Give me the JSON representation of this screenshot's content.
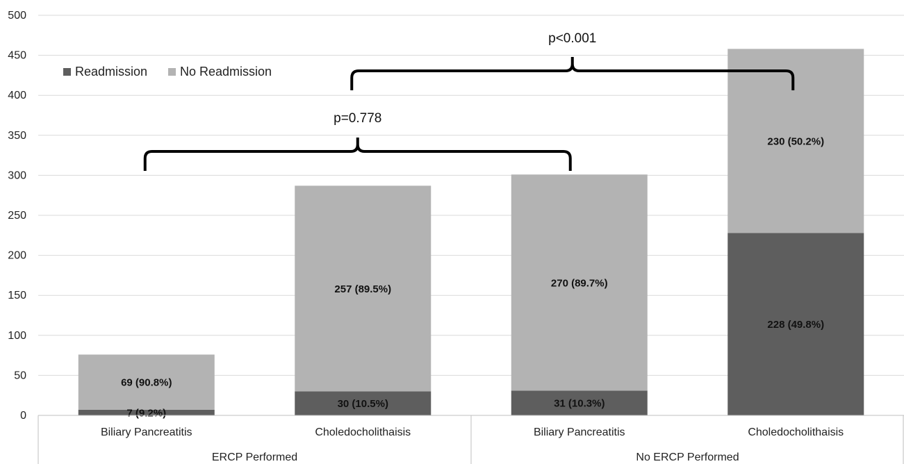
{
  "chart_data": {
    "type": "bar",
    "stacked": true,
    "categories": [
      "Biliary Pancreatitis",
      "Choledocholithaisis",
      "Biliary Pancreatitis",
      "Choledocholithaisis"
    ],
    "groups": [
      {
        "label": "ERCP Performed",
        "categories": [
          0,
          1
        ]
      },
      {
        "label": "No ERCP Performed",
        "categories": [
          2,
          3
        ]
      }
    ],
    "series": [
      {
        "name": "Readmission",
        "color": "#5e5e5e",
        "values": [
          7,
          30,
          31,
          228
        ],
        "labels": [
          "7 (9.2%)",
          "30 (10.5%)",
          "31 (10.3%)",
          "228 (49.8%)"
        ]
      },
      {
        "name": "No Readmission",
        "color": "#b3b3b3",
        "values": [
          69,
          257,
          270,
          230
        ],
        "labels": [
          "69 (90.8%)",
          "257 (89.5%)",
          "270 (89.7%)",
          "230 (50.2%)"
        ]
      }
    ],
    "ylim": [
      0,
      500
    ],
    "yticks": [
      0,
      50,
      100,
      150,
      200,
      250,
      300,
      350,
      400,
      450,
      500
    ],
    "grid": true,
    "legend": "top-left",
    "annotations": [
      {
        "text": "p=0.778",
        "from_category": 0,
        "to_category": 2
      },
      {
        "text": "p<0.001",
        "from_category": 1,
        "to_category": 3
      }
    ]
  }
}
